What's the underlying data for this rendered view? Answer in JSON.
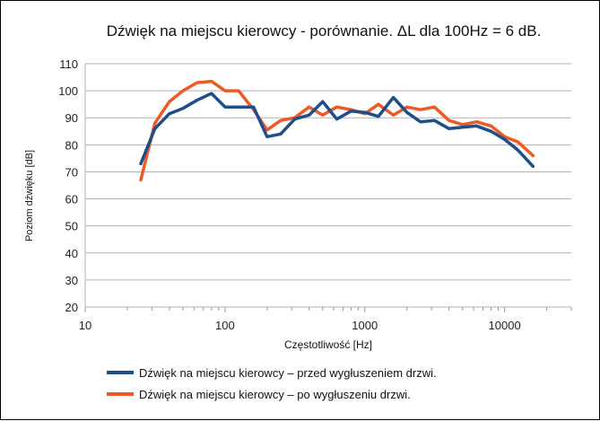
{
  "chart_data": {
    "type": "line",
    "title": "Dźwięk na miejscu kierowcy - porównanie. ΔL dla 100Hz = 6 dB.",
    "xlabel": "Częstotliwość [Hz]",
    "ylabel": "Poziom dźwięku [dB]",
    "x_scale": "log",
    "xlim": [
      10,
      30000
    ],
    "ylim": [
      20,
      110
    ],
    "x_ticks": [
      10,
      100,
      1000,
      10000
    ],
    "y_ticks": [
      20,
      30,
      40,
      50,
      60,
      70,
      80,
      90,
      100,
      110
    ],
    "grid": "horizontal",
    "legend_position": "bottom",
    "series": [
      {
        "name": "Dźwięk na miejscu kierowcy – przed wygłuszeniem drzwi.",
        "color": "#1f4e8c",
        "x": [
          25,
          31.5,
          40,
          50,
          63,
          80,
          100,
          125,
          160,
          200,
          250,
          315,
          400,
          500,
          630,
          800,
          1000,
          1250,
          1600,
          2000,
          2500,
          3150,
          4000,
          5000,
          6300,
          8000,
          10000,
          12500,
          16000
        ],
        "y": [
          73,
          86,
          91.5,
          93.5,
          96.5,
          99,
          94,
          94,
          94,
          83,
          84,
          89.5,
          91,
          96,
          89.5,
          92.5,
          92,
          90.5,
          97.5,
          92,
          88.5,
          89,
          86,
          86.5,
          87,
          85,
          82,
          78,
          72
        ]
      },
      {
        "name": "Dźwięk na miejscu kierowcy – po wygłuszeniu drzwi.",
        "color": "#ee5a24",
        "x": [
          25,
          31.5,
          40,
          50,
          63,
          80,
          100,
          125,
          160,
          200,
          250,
          315,
          400,
          500,
          630,
          800,
          1000,
          1250,
          1600,
          2000,
          2500,
          3150,
          4000,
          5000,
          6300,
          8000,
          10000,
          12500,
          16000
        ],
        "y": [
          67,
          88,
          96,
          100,
          103,
          103.5,
          100,
          100,
          93,
          85.5,
          89,
          90,
          94,
          91,
          94,
          93,
          91.5,
          95,
          91,
          94,
          93,
          94,
          89,
          87.5,
          88.5,
          87,
          83,
          81,
          76
        ]
      }
    ]
  }
}
